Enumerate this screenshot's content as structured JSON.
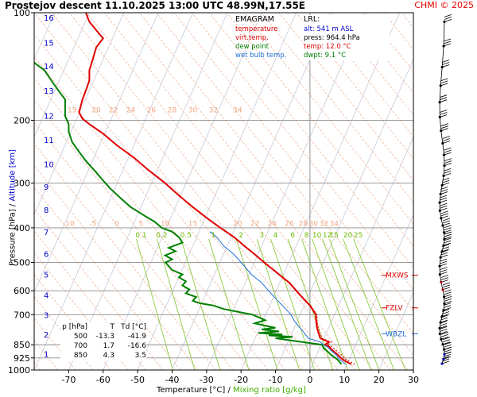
{
  "header": {
    "title": "Prostejov   descent   11.10.2025 13:00 UTC  48.99N,17.55E",
    "copyright": "CHMI © 2025"
  },
  "legend": {
    "title": "EMAGRAM",
    "items": [
      {
        "label": "temperature",
        "color": "#e00000"
      },
      {
        "label": "virt.temp.",
        "color": "#e00000"
      },
      {
        "label": "dew point",
        "color": "#008000"
      },
      {
        "label": "wet bulb temp.",
        "color": "#1f6fd6"
      }
    ]
  },
  "lrl": {
    "title": "LRL:",
    "lines": [
      {
        "text": "alt: 541 m ASL",
        "color": "#0000cc"
      },
      {
        "text": "press: 964.4 hPa",
        "color": "#000000"
      },
      {
        "text": "temp: 12.0 °C",
        "color": "#e00000"
      },
      {
        "text": "dwpt: 9.1 °C",
        "color": "#008000"
      }
    ]
  },
  "levels_table": {
    "headers": [
      "p [hPa]",
      "T",
      "Td [°C]"
    ],
    "rows": [
      [
        "500",
        "-13.3",
        "-41.9"
      ],
      [
        "700",
        "1.7",
        "-16.6"
      ],
      [
        "850",
        "4.3",
        "3.5"
      ]
    ]
  },
  "axes": {
    "x_title_a": "Temperature [°C]",
    "x_title_sep": "/",
    "x_title_b": "Mixing ratio [g/kg]",
    "y_title_a": "Pressure [hPa]",
    "y_title_sep": "/",
    "y_title_b": "Altitude [km]"
  },
  "chart_data": {
    "type": "line",
    "xlim": [
      -80,
      30
    ],
    "ylim": [
      1000,
      100
    ],
    "y_scale": "log",
    "x_ticks": [
      -70,
      -60,
      -50,
      -40,
      -30,
      -20,
      -10,
      0,
      10,
      20,
      30
    ],
    "pressure_ticks": [
      100,
      200,
      300,
      400,
      500,
      600,
      700,
      850,
      925,
      1000
    ],
    "altitude_ticks_km": [
      1,
      2,
      3,
      4,
      5,
      6,
      7,
      8,
      9,
      10,
      11,
      12,
      13,
      14,
      15,
      16
    ],
    "altitude_km_pressure": [
      [
        1,
        900
      ],
      [
        2,
        795
      ],
      [
        3,
        701
      ],
      [
        4,
        616
      ],
      [
        5,
        540
      ],
      [
        6,
        472
      ],
      [
        7,
        410
      ],
      [
        8,
        356
      ],
      [
        9,
        307
      ],
      [
        10,
        265
      ],
      [
        11,
        227
      ],
      [
        12,
        194
      ],
      [
        13,
        165
      ],
      [
        14,
        141
      ],
      [
        15,
        121
      ],
      [
        16,
        103
      ]
    ],
    "isotherm_labels": [
      {
        "row": "top",
        "p": 190,
        "values": [
          "15",
          "20",
          "22",
          "24",
          "26",
          "28",
          "30",
          "32",
          "34"
        ],
        "t_at_label": [
          -69,
          -62,
          -57,
          -52,
          -46,
          -40,
          -34,
          -28,
          -21
        ]
      },
      {
        "row": "mid",
        "p": 395,
        "values": [
          "-10",
          "-5",
          "0",
          "5",
          "10",
          "15",
          "20",
          "22",
          "24",
          "26",
          "28",
          "30",
          "32",
          "34"
        ],
        "t_at_label": [
          -70,
          -63,
          -56,
          -49,
          -42,
          -34,
          -21,
          -16,
          -11,
          -6,
          -2,
          1,
          4,
          7
        ]
      }
    ],
    "mixing_ratio_labels": {
      "p": 430,
      "values": [
        "0.1",
        "0.2",
        "0.5",
        "1",
        "2",
        "3",
        "4",
        "6",
        "8",
        "10",
        "12",
        "15",
        "20",
        "25"
      ],
      "t_at_label": [
        -49,
        -43,
        -36,
        -28,
        -20,
        -14,
        -10,
        -5,
        -1,
        2,
        5,
        7,
        11,
        14
      ]
    },
    "reference_levels": [
      {
        "label": "MXWS",
        "p": 543
      },
      {
        "label": "FZLV",
        "p": 670
      },
      {
        "label": "WBZL",
        "p": 792
      }
    ],
    "series": [
      {
        "name": "temperature",
        "color": "#e00000",
        "points": [
          [
            12,
            964
          ],
          [
            9.5,
            935
          ],
          [
            8,
            905
          ],
          [
            6.5,
            880
          ],
          [
            5.5,
            860
          ],
          [
            4.3,
            850
          ],
          [
            5.5,
            835
          ],
          [
            3,
            815
          ],
          [
            2.5,
            790
          ],
          [
            2,
            760
          ],
          [
            1.8,
            730
          ],
          [
            1.7,
            700
          ],
          [
            0,
            660
          ],
          [
            -2,
            630
          ],
          [
            -4,
            600
          ],
          [
            -6,
            570
          ],
          [
            -9,
            540
          ],
          [
            -13.3,
            500
          ],
          [
            -16,
            475
          ],
          [
            -19,
            450
          ],
          [
            -22,
            425
          ],
          [
            -26,
            400
          ],
          [
            -30,
            375
          ],
          [
            -34,
            350
          ],
          [
            -38,
            325
          ],
          [
            -42,
            300
          ],
          [
            -47,
            275
          ],
          [
            -51,
            255
          ],
          [
            -56,
            235
          ],
          [
            -60,
            218
          ],
          [
            -64,
            205
          ],
          [
            -66,
            198
          ],
          [
            -67,
            190
          ],
          [
            -66,
            175
          ],
          [
            -65,
            165
          ],
          [
            -64,
            155
          ],
          [
            -64,
            145
          ],
          [
            -63,
            135
          ],
          [
            -62,
            125
          ],
          [
            -60,
            118
          ],
          [
            -62,
            112
          ],
          [
            -64,
            106
          ],
          [
            -65,
            100
          ]
        ]
      },
      {
        "name": "virt.temp.",
        "color": "#e00000",
        "points": [
          [
            13,
            964
          ],
          [
            10.5,
            935
          ],
          [
            9,
            905
          ],
          [
            7.5,
            880
          ],
          [
            6.3,
            860
          ],
          [
            5,
            850
          ],
          [
            6.2,
            835
          ],
          [
            3.5,
            815
          ],
          [
            3,
            790
          ],
          [
            2.4,
            760
          ],
          [
            2.1,
            730
          ],
          [
            2,
            700
          ],
          [
            0.2,
            660
          ],
          [
            -1.8,
            630
          ],
          [
            -3.8,
            600
          ],
          [
            -5.8,
            570
          ],
          [
            -8.8,
            540
          ],
          [
            -13.1,
            500
          ],
          [
            -15.8,
            475
          ],
          [
            -18.8,
            450
          ],
          [
            -21.8,
            425
          ],
          [
            -25.9,
            400
          ],
          [
            -29.9,
            375
          ],
          [
            -33.9,
            350
          ],
          [
            -37.9,
            325
          ],
          [
            -42,
            300
          ],
          [
            -47,
            275
          ],
          [
            -51,
            255
          ],
          [
            -56,
            235
          ],
          [
            -60,
            218
          ],
          [
            -64,
            205
          ],
          [
            -66,
            198
          ],
          [
            -67,
            190
          ],
          [
            -66,
            175
          ],
          [
            -65,
            165
          ],
          [
            -64,
            155
          ],
          [
            -64,
            145
          ],
          [
            -63,
            135
          ],
          [
            -62,
            125
          ],
          [
            -60,
            118
          ],
          [
            -62,
            112
          ],
          [
            -64,
            106
          ],
          [
            -65,
            100
          ]
        ]
      },
      {
        "name": "dew point",
        "color": "#008000",
        "points": [
          [
            9.1,
            964
          ],
          [
            8,
            935
          ],
          [
            7,
            920
          ],
          [
            6,
            905
          ],
          [
            5,
            885
          ],
          [
            4,
            870
          ],
          [
            3.5,
            850
          ],
          [
            -10,
            815
          ],
          [
            -5,
            808
          ],
          [
            -12,
            800
          ],
          [
            -8,
            795
          ],
          [
            -15,
            788
          ],
          [
            -9,
            780
          ],
          [
            -14,
            770
          ],
          [
            -10,
            762
          ],
          [
            -12,
            755
          ],
          [
            -16,
            740
          ],
          [
            -13,
            725
          ],
          [
            -16.6,
            700
          ],
          [
            -20,
            690
          ],
          [
            -25,
            675
          ],
          [
            -28,
            660
          ],
          [
            -32,
            650
          ],
          [
            -34,
            640
          ],
          [
            -33,
            625
          ],
          [
            -36,
            610
          ],
          [
            -35,
            595
          ],
          [
            -37,
            580
          ],
          [
            -36,
            565
          ],
          [
            -38,
            550
          ],
          [
            -37,
            540
          ],
          [
            -40,
            525
          ],
          [
            -41.9,
            500
          ],
          [
            -40,
            490
          ],
          [
            -42,
            478
          ],
          [
            -39,
            465
          ],
          [
            -41,
            455
          ],
          [
            -37,
            440
          ],
          [
            -38,
            425
          ],
          [
            -40,
            410
          ],
          [
            -43,
            400
          ],
          [
            -45,
            385
          ],
          [
            -48,
            370
          ],
          [
            -52,
            350
          ],
          [
            -55,
            330
          ],
          [
            -58,
            310
          ],
          [
            -60,
            295
          ],
          [
            -62,
            280
          ],
          [
            -65,
            260
          ],
          [
            -67,
            245
          ],
          [
            -69,
            230
          ],
          [
            -70,
            215
          ],
          [
            -70,
            205
          ],
          [
            -71,
            195
          ],
          [
            -71,
            185
          ],
          [
            -71,
            175
          ],
          [
            -73,
            165
          ],
          [
            -75,
            155
          ],
          [
            -77,
            145
          ],
          [
            -80,
            138
          ]
        ]
      },
      {
        "name": "wet bulb temp.",
        "color": "#1f6fd6",
        "points": [
          [
            10.3,
            964
          ],
          [
            8.7,
            935
          ],
          [
            7.5,
            905
          ],
          [
            6,
            880
          ],
          [
            5,
            860
          ],
          [
            3.9,
            850
          ],
          [
            3,
            835
          ],
          [
            -0.5,
            815
          ],
          [
            -1.5,
            790
          ],
          [
            -3,
            760
          ],
          [
            -4.5,
            730
          ],
          [
            -5.5,
            700
          ],
          [
            -8,
            660
          ],
          [
            -10,
            630
          ],
          [
            -12,
            600
          ],
          [
            -14,
            570
          ],
          [
            -17,
            540
          ],
          [
            -20,
            500
          ],
          [
            -22,
            475
          ],
          [
            -25,
            450
          ],
          [
            -27,
            425
          ],
          [
            -29,
            410
          ]
        ]
      }
    ]
  }
}
